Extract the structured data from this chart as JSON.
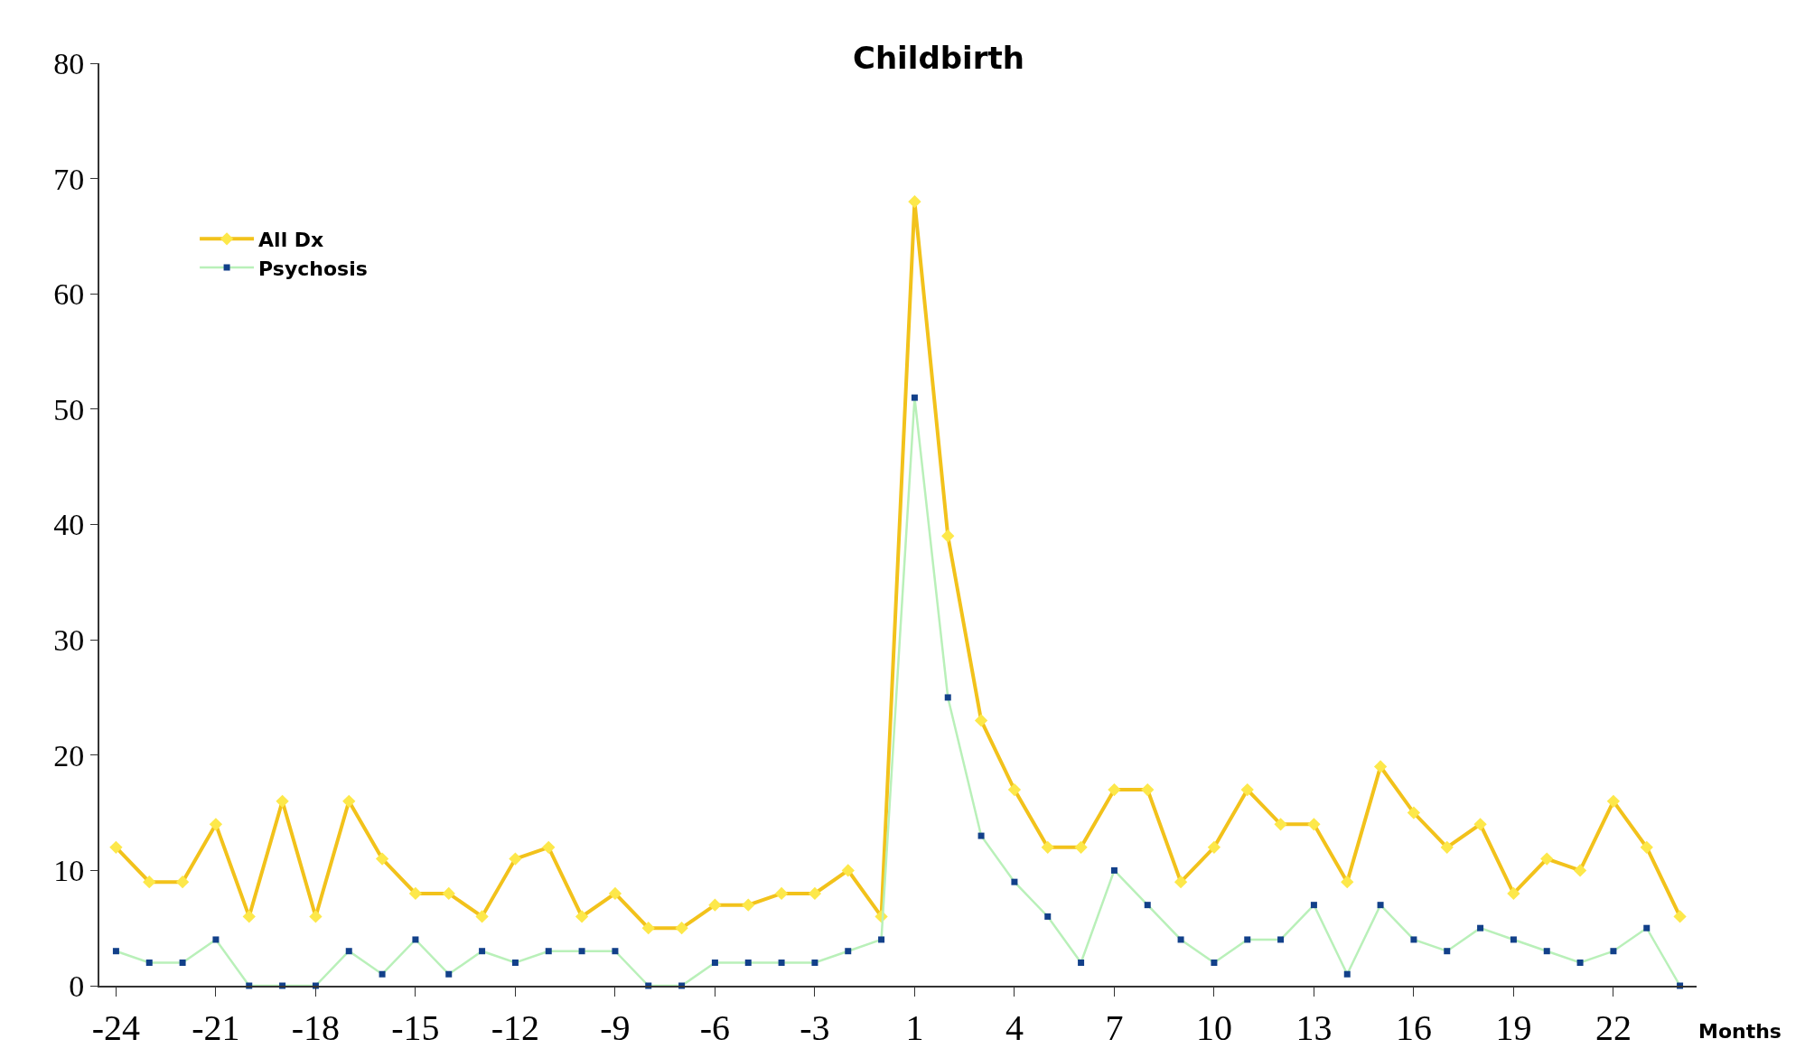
{
  "chart_data": {
    "type": "line",
    "title": "Childbirth",
    "xlabel": "Months",
    "categories": [
      "-24",
      null,
      null,
      "-21",
      null,
      null,
      "-18",
      null,
      null,
      "-15",
      null,
      null,
      "-12",
      null,
      null,
      "-9",
      null,
      null,
      "-6",
      null,
      null,
      "-3",
      null,
      null,
      "1",
      null,
      null,
      "4",
      null,
      null,
      "7",
      null,
      null,
      "10",
      null,
      null,
      "13",
      null,
      null,
      "16",
      null,
      null,
      "19",
      null,
      null,
      "22",
      null,
      null
    ],
    "series": [
      {
        "name": "All Dx",
        "color": "#f2c21b",
        "colors": [
          "#fde84a",
          "#fde84a",
          "#fde84a",
          "#fde84a",
          "#fde84a",
          "#fde84a",
          "#fde84a",
          "#fde84a",
          "#fde84a",
          "#fde84a",
          "#fde84a",
          "#fde84a",
          "#fde84a",
          "#fde84a",
          "#fde84a",
          "#fde84a",
          "#fde84a",
          "#fde84a",
          "#fde84a",
          "#fde84a",
          "#fde84a",
          "#fde84a",
          "#fde84a",
          "#fde84a",
          "#fde84a",
          "#fde84a",
          "#fde84a",
          "#fde84a",
          "#fde84a",
          "#fde84a",
          "#fde84a",
          "#fde84a",
          "#fde84a",
          "#fde84a",
          "#fde84a",
          "#fde84a",
          "#fde84a",
          "#fde84a",
          "#fde84a",
          "#fde84a",
          "#fde84a",
          "#fde84a",
          "#fde84a",
          "#fde84a",
          "#fde84a",
          "#fde84a",
          "#fde84a",
          "#fde84a"
        ],
        "marker": "diamond",
        "values": [
          12,
          9,
          9,
          14,
          6,
          16,
          6,
          16,
          11,
          8,
          8,
          6,
          11,
          12,
          6,
          8,
          5,
          5,
          7,
          7,
          8,
          8,
          10,
          6,
          68,
          39,
          23,
          17,
          12,
          12,
          17,
          17,
          9,
          12,
          17,
          14,
          14,
          9,
          19,
          15,
          12,
          14,
          8,
          11,
          10,
          16,
          12,
          6
        ]
      },
      {
        "name": "Psychosis",
        "color": "#b9f0b9",
        "colors": [
          "#12408a",
          "#12408a",
          "#12408a",
          "#12408a",
          "#12408a",
          "#12408a",
          "#12408a",
          "#12408a",
          "#12408a",
          "#12408a",
          "#12408a",
          "#12408a",
          "#12408a",
          "#12408a",
          "#12408a",
          "#12408a",
          "#12408a",
          "#12408a",
          "#12408a",
          "#12408a",
          "#12408a",
          "#12408a",
          "#12408a",
          "#12408a",
          "#12408a",
          "#12408a",
          "#12408a",
          "#12408a",
          "#12408a",
          "#12408a",
          "#12408a",
          "#12408a",
          "#12408a",
          "#12408a",
          "#12408a",
          "#12408a",
          "#12408a",
          "#12408a",
          "#12408a",
          "#12408a",
          "#12408a",
          "#12408a",
          "#12408a",
          "#12408a",
          "#12408a",
          "#12408a",
          "#12408a",
          "#12408a"
        ],
        "marker": "square",
        "values": [
          3,
          2,
          2,
          4,
          0,
          0,
          0,
          3,
          1,
          4,
          1,
          3,
          2,
          3,
          3,
          3,
          0,
          0,
          2,
          2,
          2,
          2,
          3,
          4,
          51,
          25,
          13,
          9,
          6,
          2,
          10,
          7,
          4,
          2,
          4,
          4,
          7,
          1,
          7,
          4,
          3,
          5,
          4,
          3,
          2,
          3,
          5,
          0
        ]
      }
    ],
    "ylim": [
      0,
      80
    ],
    "yticks": [
      0,
      10,
      20,
      30,
      40,
      50,
      60,
      70,
      80
    ],
    "legend": "top left"
  }
}
